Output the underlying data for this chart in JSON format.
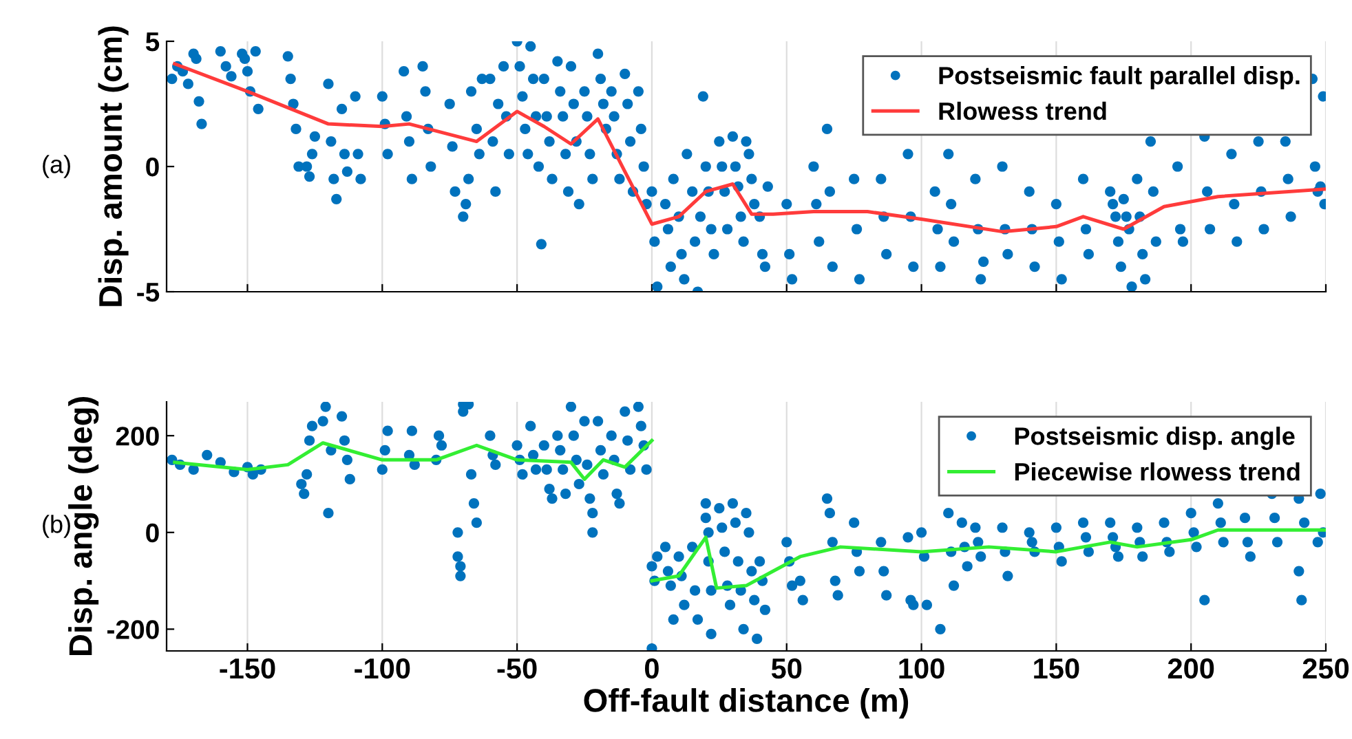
{
  "chart_data": [
    {
      "type": "scatter",
      "ylabel": "Disp. amount (cm)",
      "annotations": [
        "(a)"
      ],
      "xlim": [
        -180,
        250
      ],
      "xticks": [
        -150,
        -100,
        -50,
        0,
        50,
        100,
        150,
        200,
        250
      ],
      "ylim": [
        -5,
        5
      ],
      "yticks": [
        -5,
        0,
        5
      ],
      "tick_labels": "y",
      "grid": "x",
      "legend": "top right",
      "series": [
        {
          "name": "Postseismic fault parallel disp.",
          "marker": "circle",
          "color": "#0072bd",
          "x": [
            -178,
            -176,
            -174,
            -172,
            -170,
            -169,
            -168,
            -167,
            -160,
            -158,
            -156,
            -152,
            -151,
            -150,
            -149,
            -147,
            -146,
            -135,
            -134,
            -133,
            -132,
            -131,
            -128,
            -127,
            -126,
            -125,
            -120,
            -119,
            -118,
            -117,
            -115,
            -114,
            -113,
            -110,
            -109,
            -108,
            -100,
            -99,
            -98,
            -92,
            -91,
            -90,
            -89,
            -85,
            -84,
            -83,
            -82,
            -75,
            -74,
            -73,
            -70,
            -69,
            -68,
            -67,
            -65,
            -64,
            -63,
            -60,
            -59,
            -58,
            -57,
            -55,
            -54,
            -53,
            -50,
            -49,
            -48,
            -47,
            -46,
            -45,
            -44,
            -43,
            -42,
            -41,
            -40,
            -39,
            -38,
            -37,
            -35,
            -34,
            -33,
            -32,
            -31,
            -30,
            -29,
            -28,
            -27,
            -25,
            -24,
            -23,
            -22,
            -20,
            -19,
            -18,
            -17,
            -15,
            -14,
            -13,
            -12,
            -10,
            -9,
            -8,
            -7,
            -5,
            -4,
            -3,
            -2,
            0,
            1,
            2,
            5,
            6,
            7,
            8,
            10,
            11,
            12,
            13,
            15,
            16,
            17,
            18,
            19,
            20,
            21,
            22,
            23,
            25,
            26,
            27,
            28,
            30,
            31,
            32,
            33,
            34,
            35,
            36,
            37,
            38,
            40,
            41,
            42,
            43,
            50,
            51,
            52,
            60,
            61,
            62,
            65,
            66,
            67,
            75,
            76,
            77,
            85,
            86,
            87,
            95,
            96,
            97,
            105,
            106,
            107,
            110,
            111,
            112,
            120,
            121,
            122,
            123,
            130,
            131,
            132,
            140,
            141,
            142,
            150,
            151,
            152,
            160,
            161,
            162,
            170,
            171,
            172,
            173,
            174,
            175,
            176,
            177,
            178,
            180,
            181,
            182,
            183,
            185,
            186,
            187,
            195,
            196,
            197,
            205,
            206,
            207,
            215,
            216,
            217,
            225,
            226,
            227,
            235,
            236,
            237,
            245,
            246,
            247,
            249,
            249.5,
            248
          ],
          "values": [
            3.5,
            4.0,
            3.8,
            3.3,
            4.5,
            4.3,
            2.6,
            1.7,
            4.6,
            4.0,
            3.6,
            4.5,
            4.3,
            3.8,
            3.0,
            4.6,
            2.3,
            4.4,
            3.5,
            2.5,
            1.5,
            0.0,
            0.0,
            -0.4,
            0.5,
            1.2,
            3.3,
            1.0,
            -0.5,
            -1.3,
            2.3,
            0.5,
            -0.2,
            2.8,
            0.5,
            -0.5,
            2.8,
            1.7,
            0.5,
            3.8,
            2.0,
            1.0,
            -0.5,
            4.0,
            3.0,
            1.5,
            0.0,
            2.5,
            0.8,
            -1.0,
            -2.0,
            -1.5,
            -0.5,
            3.0,
            1.5,
            0.5,
            3.5,
            3.5,
            1.0,
            -1.0,
            2.5,
            4.0,
            2.0,
            0.5,
            5.0,
            4.0,
            2.8,
            1.5,
            0.5,
            4.8,
            3.5,
            2.0,
            0.0,
            -3.1,
            3.5,
            2.0,
            1.0,
            -0.5,
            4.2,
            3.0,
            2.0,
            0.5,
            -1.0,
            4.0,
            2.5,
            1.0,
            -1.5,
            3.0,
            2.0,
            0.5,
            -0.5,
            4.5,
            3.5,
            2.5,
            1.5,
            3.0,
            2.0,
            0.5,
            -0.5,
            3.7,
            2.5,
            1.0,
            -1.0,
            3.0,
            1.5,
            0.0,
            -1.5,
            -1.0,
            -3.0,
            -4.8,
            -1.5,
            -2.5,
            -4.0,
            -0.5,
            -2.0,
            -3.5,
            -4.5,
            0.5,
            -1.0,
            -3.0,
            -5.0,
            -2.0,
            2.8,
            0.0,
            -1.0,
            -2.5,
            -3.5,
            1.0,
            0.0,
            -1.0,
            -2.5,
            1.2,
            0.0,
            -0.8,
            -2.0,
            -3.0,
            1.0,
            0.5,
            -0.5,
            -1.5,
            -2.0,
            -3.5,
            -4.0,
            -0.8,
            -1.5,
            -3.5,
            -4.5,
            0.0,
            -1.5,
            -3.0,
            1.5,
            -1.0,
            -4.0,
            -0.5,
            -2.5,
            -4.5,
            -0.5,
            -2.0,
            -3.5,
            0.5,
            -2.0,
            -4.0,
            -1.0,
            -2.5,
            -4.0,
            0.5,
            -1.5,
            -3.0,
            -0.5,
            -2.5,
            -4.5,
            -3.8,
            0.0,
            -2.5,
            -3.5,
            -1.0,
            -2.5,
            -4.0,
            -1.5,
            -3.0,
            -4.5,
            -0.5,
            -2.5,
            -3.5,
            -1.0,
            -1.5,
            -2.0,
            -3.0,
            -4.0,
            -1.3,
            -2.0,
            -2.5,
            -4.8,
            -0.5,
            -2.0,
            -3.5,
            -4.5,
            1.0,
            -1.0,
            -3.0,
            0.0,
            -2.5,
            -3.0,
            1.2,
            -1.0,
            -2.5,
            0.5,
            -1.5,
            -3.0,
            1.0,
            -1.0,
            -2.5,
            1.0,
            -0.5,
            -2.0,
            3.5,
            0.0,
            -1.0,
            2.8,
            -1.5,
            -0.8
          ]
        },
        {
          "name": "Rlowess trend",
          "type": "line",
          "marker": "none",
          "line_style": "solid",
          "color": "#ff3b3b",
          "x": [
            -177,
            -150,
            -120,
            -100,
            -90,
            -65,
            -50,
            -40,
            -30,
            -20,
            -10,
            0,
            10,
            20,
            30,
            37,
            45,
            60,
            80,
            100,
            130,
            150,
            160,
            175,
            190,
            210,
            250
          ],
          "values": [
            4.1,
            3.0,
            1.7,
            1.6,
            1.7,
            1.0,
            2.2,
            1.6,
            0.9,
            1.9,
            -0.2,
            -2.3,
            -2.0,
            -1.0,
            -0.7,
            -1.9,
            -1.9,
            -1.8,
            -1.8,
            -2.1,
            -2.6,
            -2.4,
            -2.0,
            -2.5,
            -1.6,
            -1.2,
            -0.9
          ]
        }
      ]
    },
    {
      "type": "scatter",
      "ylabel": "Disp. angle (deg)",
      "xlabel": "Off-fault distance (m)",
      "annotations": [
        "(b)"
      ],
      "xlim": [
        -180,
        250
      ],
      "xticks": [
        -150,
        -100,
        -50,
        0,
        50,
        100,
        150,
        200,
        250
      ],
      "ylim": [
        -245,
        270
      ],
      "yticks": [
        -200,
        0,
        200
      ],
      "grid": "x",
      "legend": "top right",
      "series": [
        {
          "name": "Postseismic disp. angle",
          "marker": "circle",
          "color": "#0072bd",
          "x": [
            -178,
            -175,
            -170,
            -165,
            -160,
            -155,
            -150,
            -148,
            -145,
            -130,
            -129,
            -128,
            -127,
            -126,
            -122,
            -121,
            -120,
            -119,
            -115,
            -114,
            -113,
            -112,
            -100,
            -99,
            -98,
            -90,
            -89,
            -88,
            -80,
            -79,
            -78,
            -72,
            -72,
            -71,
            -71,
            -70,
            -70,
            -68,
            -67,
            -66,
            -65,
            -60,
            -59,
            -58,
            -50,
            -49,
            -48,
            -45,
            -44,
            -43,
            -40,
            -39,
            -38,
            -37,
            -35,
            -34,
            -33,
            -32,
            -30,
            -29,
            -28,
            -27,
            -25,
            -24,
            -23,
            -22,
            -22,
            -20,
            -19,
            -18,
            -15,
            -14,
            -13,
            -12,
            -10,
            -9,
            -8,
            -5,
            -4,
            -3,
            -2,
            0,
            1,
            0,
            2,
            5,
            6,
            7,
            8,
            10,
            11,
            12,
            15,
            16,
            17,
            20,
            20,
            21,
            21,
            22,
            22,
            25,
            26,
            27,
            28,
            29,
            30,
            31,
            32,
            33,
            34,
            35,
            36,
            37,
            38,
            39,
            40,
            41,
            42,
            50,
            51,
            52,
            55,
            56,
            65,
            66,
            67,
            68,
            69,
            75,
            76,
            77,
            85,
            86,
            87,
            95,
            96,
            97,
            100,
            101,
            102,
            107,
            110,
            111,
            112,
            115,
            116,
            117,
            120,
            121,
            122,
            130,
            131,
            132,
            140,
            141,
            142,
            150,
            151,
            152,
            160,
            161,
            162,
            170,
            171,
            172,
            173,
            180,
            181,
            182,
            190,
            191,
            192,
            200,
            201,
            202,
            205,
            210,
            211,
            212,
            220,
            221,
            222,
            230,
            231,
            232,
            240,
            240,
            241,
            242,
            248,
            249,
            247
          ],
          "values": [
            150,
            140,
            130,
            160,
            145,
            125,
            135,
            120,
            130,
            100,
            80,
            120,
            190,
            220,
            230,
            260,
            40,
            170,
            240,
            190,
            150,
            110,
            130,
            170,
            210,
            160,
            210,
            140,
            150,
            200,
            180,
            0,
            -50,
            -90,
            -70,
            265,
            250,
            265,
            120,
            60,
            20,
            200,
            160,
            140,
            180,
            150,
            120,
            220,
            160,
            130,
            180,
            130,
            90,
            70,
            200,
            170,
            130,
            80,
            260,
            200,
            150,
            100,
            230,
            140,
            70,
            40,
            0,
            230,
            170,
            120,
            200,
            150,
            80,
            60,
            250,
            190,
            130,
            260,
            220,
            180,
            130,
            -70,
            -100,
            -240,
            -50,
            -30,
            -80,
            -110,
            -180,
            -50,
            -90,
            -150,
            -30,
            -120,
            -180,
            60,
            30,
            0,
            -60,
            -120,
            -210,
            50,
            10,
            -40,
            -110,
            -150,
            60,
            20,
            -60,
            -120,
            -200,
            40,
            0,
            -80,
            -140,
            -220,
            -60,
            -100,
            -160,
            -20,
            -60,
            -110,
            -100,
            -140,
            70,
            40,
            -20,
            -100,
            -130,
            20,
            -40,
            -80,
            -20,
            -80,
            -130,
            -10,
            -140,
            -150,
            0,
            -50,
            -150,
            -200,
            40,
            -40,
            -110,
            20,
            -30,
            -70,
            10,
            -20,
            -50,
            10,
            -40,
            -90,
            0,
            -20,
            -40,
            10,
            -30,
            -60,
            20,
            -10,
            -40,
            20,
            -10,
            -30,
            -50,
            10,
            -20,
            -50,
            20,
            -20,
            -40,
            40,
            0,
            -30,
            -140,
            60,
            20,
            -20,
            30,
            -20,
            -50,
            80,
            30,
            -20,
            70,
            -80,
            -140,
            20,
            80,
            0,
            -20
          ]
        },
        {
          "name": "Piecewise rlowess trend",
          "type": "line",
          "marker": "none",
          "line_style": "solid",
          "color": "#33ee33",
          "x": [
            -177,
            -150,
            -135,
            -122,
            -100,
            -80,
            -65,
            -50,
            -30,
            -25,
            -18,
            -10,
            0
          ],
          "values": [
            145,
            130,
            140,
            185,
            150,
            150,
            180,
            150,
            145,
            110,
            150,
            135,
            190
          ]
        },
        {
          "type": "line",
          "marker": "none",
          "line_style": "solid",
          "color": "#33ee33",
          "x": [
            0,
            10,
            20,
            24,
            35,
            45,
            55,
            70,
            100,
            125,
            150,
            170,
            180,
            200,
            210,
            250
          ],
          "values": [
            -100,
            -90,
            -10,
            -115,
            -110,
            -80,
            -50,
            -30,
            -40,
            -30,
            -40,
            -20,
            -30,
            -15,
            5,
            5
          ]
        }
      ]
    }
  ]
}
